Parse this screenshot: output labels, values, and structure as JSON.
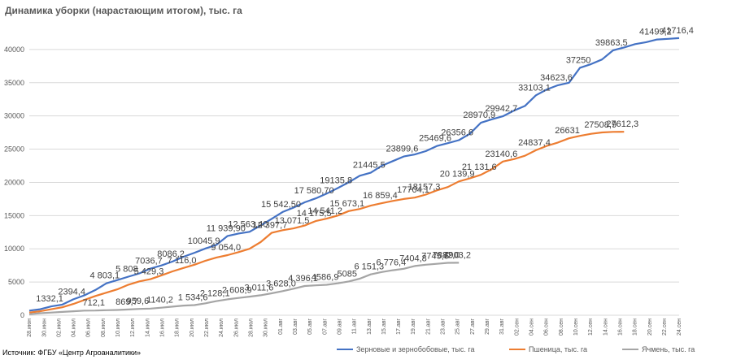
{
  "title": "Динамика уборки (нарастающим итогом), тыс. га",
  "source": "Источник: ФГБУ «Центр Агроаналитики»",
  "chart_data": {
    "type": "line",
    "ylim": [
      0,
      45000
    ],
    "yticks": [
      0,
      5000,
      10000,
      15000,
      20000,
      25000,
      30000,
      35000,
      40000
    ],
    "grid": true,
    "legend_position": "bottom",
    "xtick_labels": [
      "28.июн",
      "30.июн",
      "02.июл",
      "04.июл",
      "06.июл",
      "08.июл",
      "10.июл",
      "12.июл",
      "14.июл",
      "16.июл",
      "18.июл",
      "20.июл",
      "22.июл",
      "24.июл",
      "26.июл",
      "28.июл",
      "30.июл",
      "01.авг",
      "03.авг",
      "05.авг",
      "07.авг",
      "09.авг",
      "11.авг",
      "13.авг",
      "15.авг",
      "17.авг",
      "19.авг",
      "21.авг",
      "23.авг",
      "25.авг",
      "27.авг",
      "29.авг",
      "31.авг",
      "02.сен",
      "04.сен",
      "06.сен",
      "08.сен",
      "10.сен",
      "12.сен",
      "14.сен",
      "16.сен",
      "18.сен",
      "20.сен",
      "22.сен",
      "24.сен"
    ],
    "series": [
      {
        "name": "Зерновые и зернобобовые, тыс. га",
        "color": "#4472C4",
        "points": [
          [
            0,
            700
          ],
          [
            1,
            900
          ],
          [
            2,
            1332.1
          ],
          [
            3,
            1600
          ],
          [
            4,
            2394.4
          ],
          [
            5,
            3000
          ],
          [
            6,
            3800
          ],
          [
            7,
            4803.1
          ],
          [
            8,
            5300
          ],
          [
            9,
            5808
          ],
          [
            10,
            6300
          ],
          [
            11,
            7036.7
          ],
          [
            12,
            7500
          ],
          [
            13,
            8086.2
          ],
          [
            14,
            8800
          ],
          [
            15,
            9400
          ],
          [
            16,
            10045.9
          ],
          [
            17,
            10600
          ],
          [
            18,
            11939.9
          ],
          [
            19,
            12300
          ],
          [
            20,
            12563.4
          ],
          [
            21,
            13500
          ],
          [
            22,
            14500
          ],
          [
            23,
            15542.5
          ],
          [
            24,
            16200
          ],
          [
            25,
            17000
          ],
          [
            26,
            17580.7
          ],
          [
            27,
            18300
          ],
          [
            28,
            19135.8
          ],
          [
            29,
            20000
          ],
          [
            30,
            21000
          ],
          [
            31,
            21445.5
          ],
          [
            32,
            22500
          ],
          [
            33,
            23200
          ],
          [
            34,
            23899.6
          ],
          [
            35,
            24200
          ],
          [
            36,
            24700
          ],
          [
            37,
            25469.6
          ],
          [
            38,
            25900
          ],
          [
            39,
            26356.6
          ],
          [
            40,
            27300
          ],
          [
            41,
            28970.9
          ],
          [
            42,
            29500
          ],
          [
            43,
            29942.7
          ],
          [
            44,
            30800
          ],
          [
            45,
            31500
          ],
          [
            46,
            33103.1
          ],
          [
            47,
            34000
          ],
          [
            48,
            34623.6
          ],
          [
            49,
            35000
          ],
          [
            50,
            37250
          ],
          [
            51,
            37800
          ],
          [
            52,
            38500
          ],
          [
            53,
            39863.5
          ],
          [
            54,
            40300
          ],
          [
            55,
            40800
          ],
          [
            56,
            41100
          ],
          [
            57,
            41499.2
          ],
          [
            58,
            41600
          ],
          [
            59,
            41716.4
          ]
        ]
      },
      {
        "name": "Пшеница, тыс. га",
        "color": "#ED7D31",
        "points": [
          [
            0,
            400
          ],
          [
            1,
            600
          ],
          [
            2,
            900
          ],
          [
            3,
            1200
          ],
          [
            4,
            1700
          ],
          [
            5,
            2300
          ],
          [
            6,
            2900
          ],
          [
            7,
            3400
          ],
          [
            8,
            3900
          ],
          [
            9,
            4600
          ],
          [
            10,
            5100
          ],
          [
            11,
            5429.3
          ],
          [
            12,
            6000
          ],
          [
            13,
            6600
          ],
          [
            14,
            7116
          ],
          [
            15,
            7600
          ],
          [
            16,
            8200
          ],
          [
            17,
            8700
          ],
          [
            18,
            9054
          ],
          [
            19,
            9500
          ],
          [
            20,
            10000
          ],
          [
            21,
            11000
          ],
          [
            22,
            12397.7
          ],
          [
            23,
            12800
          ],
          [
            24,
            13071.5
          ],
          [
            25,
            13500
          ],
          [
            26,
            14175.5
          ],
          [
            27,
            14541.2
          ],
          [
            28,
            15000
          ],
          [
            29,
            15673.1
          ],
          [
            30,
            16000
          ],
          [
            31,
            16500
          ],
          [
            32,
            16859.4
          ],
          [
            33,
            17200
          ],
          [
            34,
            17500
          ],
          [
            35,
            17704.1
          ],
          [
            36,
            18157.3
          ],
          [
            37,
            18800
          ],
          [
            38,
            19300
          ],
          [
            39,
            20139.9
          ],
          [
            40,
            20600
          ],
          [
            41,
            21131.6
          ],
          [
            42,
            22000
          ],
          [
            43,
            23140.6
          ],
          [
            44,
            23500
          ],
          [
            45,
            24000
          ],
          [
            46,
            24837.4
          ],
          [
            47,
            25500
          ],
          [
            48,
            26000
          ],
          [
            49,
            26631
          ],
          [
            50,
            27000
          ],
          [
            51,
            27300
          ],
          [
            52,
            27508.9
          ],
          [
            53,
            27600
          ],
          [
            54,
            27612.3
          ]
        ]
      },
      {
        "name": "Ячмень, тыс. га",
        "color": "#A5A5A5",
        "points": [
          [
            0,
            150
          ],
          [
            1,
            300
          ],
          [
            2,
            400
          ],
          [
            3,
            500
          ],
          [
            4,
            600
          ],
          [
            5,
            700
          ],
          [
            6,
            712.1
          ],
          [
            7,
            760
          ],
          [
            8,
            800
          ],
          [
            9,
            869.7
          ],
          [
            10,
            959.6
          ],
          [
            11,
            1000
          ],
          [
            12,
            1140.2
          ],
          [
            13,
            1300
          ],
          [
            14,
            1450
          ],
          [
            15,
            1534.6
          ],
          [
            16,
            1800
          ],
          [
            17,
            2128.1
          ],
          [
            18,
            2400
          ],
          [
            19,
            2608.9
          ],
          [
            20,
            2800
          ],
          [
            21,
            3011.6
          ],
          [
            22,
            3300
          ],
          [
            23,
            3628
          ],
          [
            24,
            4000
          ],
          [
            25,
            4396.1
          ],
          [
            26,
            4500
          ],
          [
            27,
            4586.9
          ],
          [
            28,
            4800
          ],
          [
            29,
            5085
          ],
          [
            30,
            5500
          ],
          [
            31,
            6151.3
          ],
          [
            32,
            6500
          ],
          [
            33,
            6776.4
          ],
          [
            34,
            7000
          ],
          [
            35,
            7404.8
          ],
          [
            36,
            7600
          ],
          [
            37,
            7745.6
          ],
          [
            38,
            7882
          ],
          [
            39,
            7903.2
          ]
        ]
      }
    ],
    "data_labels": [
      {
        "series": 0,
        "text": "1332,1"
      },
      {
        "series": 0,
        "text": "2394,4"
      },
      {
        "series": 0,
        "text": "4 803,1"
      },
      {
        "series": 0,
        "text": "5 808"
      },
      {
        "series": 0,
        "text": "7036,7"
      },
      {
        "series": 0,
        "text": "8086,2"
      },
      {
        "series": 0,
        "text": "10045,9"
      },
      {
        "series": 0,
        "text": "11 939,90"
      },
      {
        "series": 0,
        "text": "12 563,40"
      },
      {
        "series": 0,
        "text": "15 542,50"
      },
      {
        "series": 0,
        "text": "17 580,70"
      },
      {
        "series": 0,
        "text": "19135,8"
      },
      {
        "series": 0,
        "text": "21445,5"
      },
      {
        "series": 0,
        "text": "23899,6"
      },
      {
        "series": 0,
        "text": "25469,6"
      },
      {
        "series": 0,
        "text": "26356,6"
      },
      {
        "series": 0,
        "text": "28970,9"
      },
      {
        "series": 0,
        "text": "29942,7"
      },
      {
        "series": 0,
        "text": "33103,1"
      },
      {
        "series": 0,
        "text": "34623,6"
      },
      {
        "series": 0,
        "text": "37250"
      },
      {
        "series": 0,
        "text": "39863,5"
      },
      {
        "series": 0,
        "text": "41499,2"
      },
      {
        "series": 0,
        "text": "41716,4"
      },
      {
        "series": 1,
        "text": "5 429,3"
      },
      {
        "series": 1,
        "text": "7 116,0"
      },
      {
        "series": 1,
        "text": "9 054,0"
      },
      {
        "series": 1,
        "text": "12 397,7"
      },
      {
        "series": 1,
        "text": "13 071,5"
      },
      {
        "series": 1,
        "text": "14 175,5"
      },
      {
        "series": 1,
        "text": "14 541,2"
      },
      {
        "series": 1,
        "text": "15 673,1"
      },
      {
        "series": 1,
        "text": "16 859,4"
      },
      {
        "series": 1,
        "text": "17704,1"
      },
      {
        "series": 1,
        "text": "18157,3"
      },
      {
        "series": 1,
        "text": "20 139,9"
      },
      {
        "series": 1,
        "text": "21 131,6"
      },
      {
        "series": 1,
        "text": "23140,6"
      },
      {
        "series": 1,
        "text": "24837,4"
      },
      {
        "series": 1,
        "text": "26631"
      },
      {
        "series": 1,
        "text": "27508,9"
      },
      {
        "series": 1,
        "text": "27612,3"
      },
      {
        "series": 2,
        "text": "712,1"
      },
      {
        "series": 2,
        "text": "869,7"
      },
      {
        "series": 2,
        "text": "959,6"
      },
      {
        "series": 2,
        "text": "1140,2"
      },
      {
        "series": 2,
        "text": "1 534,6"
      },
      {
        "series": 2,
        "text": "2 128,1"
      },
      {
        "series": 2,
        "text": "2 608,9"
      },
      {
        "series": 2,
        "text": "3 011,6"
      },
      {
        "series": 2,
        "text": "3 628,0"
      },
      {
        "series": 2,
        "text": "4 396,1"
      },
      {
        "series": 2,
        "text": "4586,9"
      },
      {
        "series": 2,
        "text": "5085"
      },
      {
        "series": 2,
        "text": "6 151,3"
      },
      {
        "series": 2,
        "text": "6 776,4"
      },
      {
        "series": 2,
        "text": "7404,8"
      },
      {
        "series": 2,
        "text": "7745,6"
      },
      {
        "series": 2,
        "text": "7882,0"
      },
      {
        "series": 2,
        "text": "7903,2"
      }
    ]
  }
}
